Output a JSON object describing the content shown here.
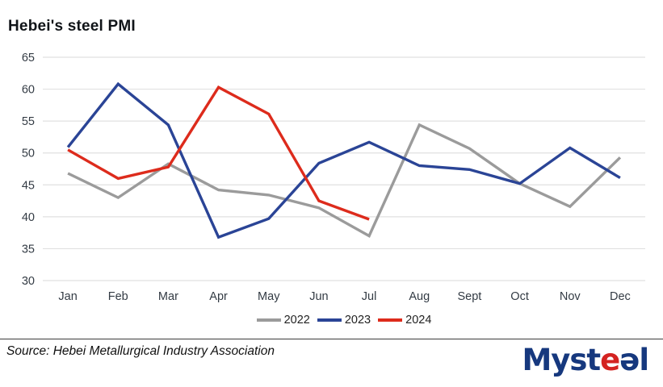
{
  "title": "Hebei's steel PMI",
  "chart_data": {
    "type": "line",
    "title": "Hebei's steel PMI",
    "categories": [
      "Jan",
      "Feb",
      "Mar",
      "Apr",
      "May",
      "Jun",
      "Jul",
      "Aug",
      "Sept",
      "Oct",
      "Nov",
      "Dec"
    ],
    "series": [
      {
        "name": "2022",
        "color": "#9b9b9b",
        "values": [
          46.8,
          43.0,
          48.3,
          44.2,
          43.4,
          41.4,
          37.0,
          54.4,
          50.7,
          45.2,
          41.6,
          49.3
        ]
      },
      {
        "name": "2023",
        "color": "#2a4496",
        "values": [
          50.9,
          60.8,
          54.4,
          36.8,
          39.7,
          48.4,
          51.7,
          48.0,
          47.4,
          45.2,
          50.8,
          46.1
        ]
      },
      {
        "name": "2024",
        "color": "#dd2b1c",
        "values": [
          50.5,
          46.0,
          47.8,
          60.3,
          56.1,
          42.5,
          39.6
        ]
      }
    ],
    "xlabel": "",
    "ylabel": "",
    "ylim": [
      30,
      65
    ],
    "ytick_step": 5,
    "grid": "horizontal",
    "legend_position": "bottom-center"
  },
  "colors": {
    "gridline": "#e1e1e1",
    "axis_label": "#333b44",
    "title_text": "#101418",
    "rule": "#3c3c3c"
  },
  "footer": {
    "source": "Source: Hebei Metallurgical Industry Association",
    "logo": {
      "alt": "Mysteel",
      "text_blue_1": "Myst",
      "text_red": "e",
      "text_blue_2": "əl",
      "blue": "#16387e",
      "red": "#d42321"
    }
  }
}
